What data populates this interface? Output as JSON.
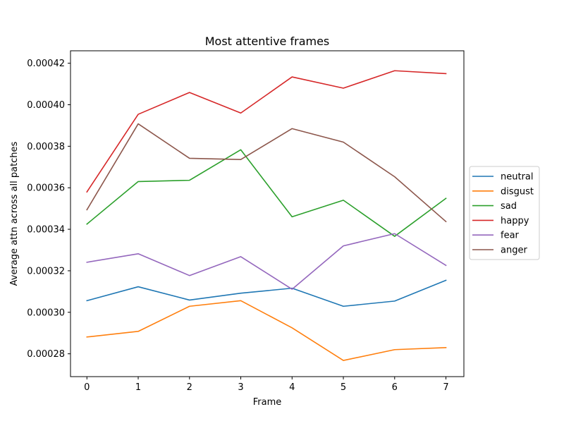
{
  "chart_data": {
    "type": "line",
    "title": "Most attentive frames",
    "xlabel": "Frame",
    "ylabel": "Average attn across all patches",
    "x": [
      0,
      1,
      2,
      3,
      4,
      5,
      6,
      7
    ],
    "xlim": [
      -0.32,
      7.35
    ],
    "ylim": [
      0.000269,
      0.000426
    ],
    "xticks": [
      0,
      1,
      2,
      3,
      4,
      5,
      6,
      7
    ],
    "yticks": [
      0.00028,
      0.0003,
      0.00032,
      0.00034,
      0.00036,
      0.00038,
      0.0004,
      0.00042
    ],
    "ytick_labels": [
      "0.00028",
      "0.00030",
      "0.00032",
      "0.00034",
      "0.00036",
      "0.00038",
      "0.00040",
      "0.00042"
    ],
    "grid": false,
    "legend_position": "center-right-outside",
    "series": [
      {
        "name": "neutral",
        "color": "#1f77b4",
        "values": [
          0.0003056,
          0.0003123,
          0.0003059,
          0.0003092,
          0.0003116,
          0.0003029,
          0.0003054,
          0.0003154
        ]
      },
      {
        "name": "disgust",
        "color": "#ff7f0e",
        "values": [
          0.0002881,
          0.0002908,
          0.0003029,
          0.0003056,
          0.0002925,
          0.0002768,
          0.000282,
          0.000283
        ]
      },
      {
        "name": "sad",
        "color": "#2ca02c",
        "values": [
          0.0003425,
          0.000363,
          0.0003636,
          0.0003783,
          0.000346,
          0.000354,
          0.0003366,
          0.0003549
        ]
      },
      {
        "name": "happy",
        "color": "#d62728",
        "values": [
          0.000358,
          0.0003954,
          0.0004059,
          0.000396,
          0.0004134,
          0.000408,
          0.0004164,
          0.000415
        ]
      },
      {
        "name": "fear",
        "color": "#9467bd",
        "values": [
          0.0003241,
          0.0003282,
          0.0003177,
          0.0003268,
          0.0003111,
          0.000332,
          0.0003379,
          0.0003226
        ]
      },
      {
        "name": "anger",
        "color": "#8c564b",
        "values": [
          0.0003494,
          0.0003908,
          0.0003742,
          0.0003736,
          0.0003885,
          0.000382,
          0.0003653,
          0.0003437
        ]
      }
    ]
  }
}
